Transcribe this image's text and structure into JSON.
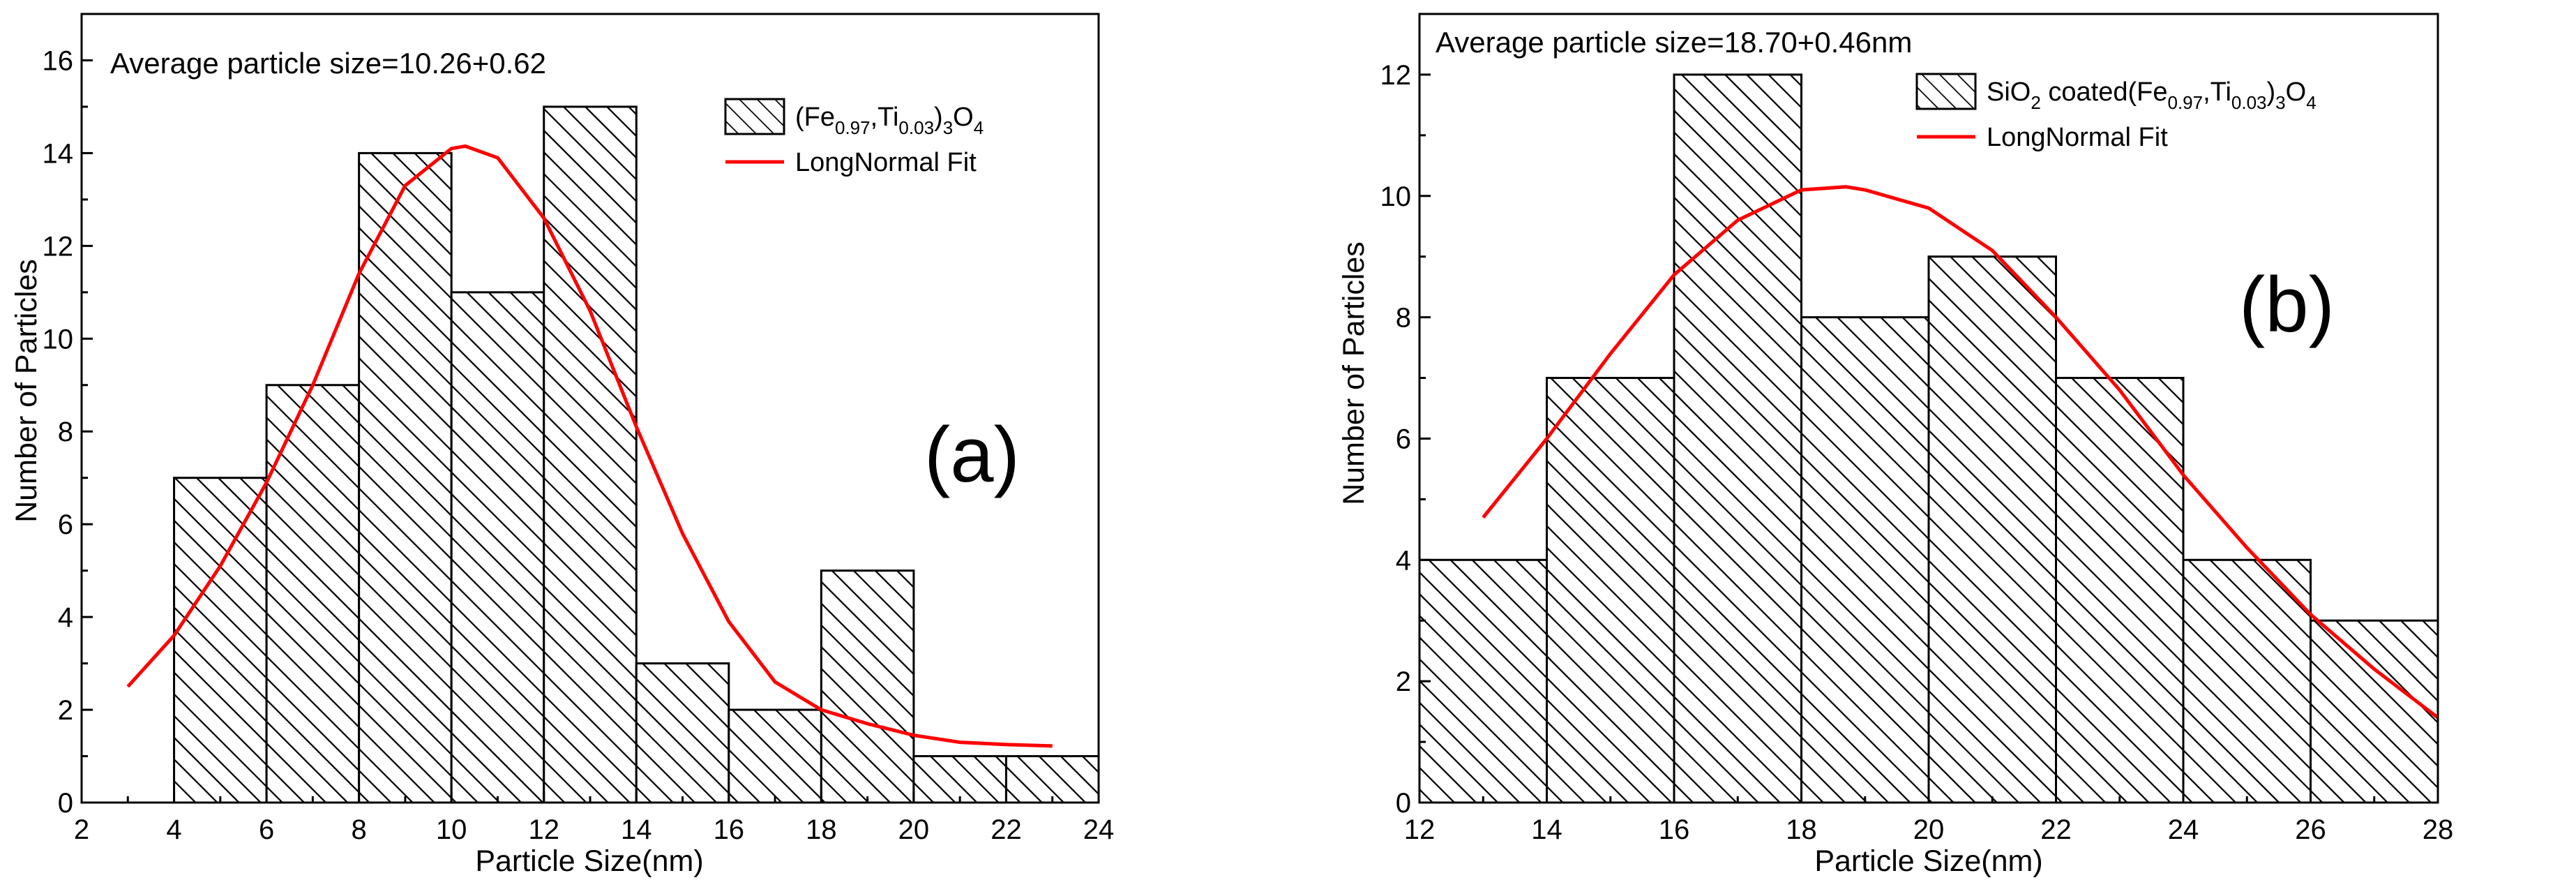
{
  "chart_data": [
    {
      "type": "bar",
      "panel_label": "(a)",
      "annotation": "Average particle size=10.26+0.62",
      "xlabel": "Particle Size(nm)",
      "ylabel": "Number of Particles",
      "xlim": [
        2,
        24
      ],
      "ylim": [
        0,
        17
      ],
      "xticks": [
        2,
        4,
        6,
        8,
        10,
        12,
        14,
        16,
        18,
        20,
        22,
        24
      ],
      "yticks": [
        0,
        2,
        4,
        6,
        8,
        10,
        12,
        14,
        16
      ],
      "bins": [
        [
          4,
          6
        ],
        [
          6,
          8
        ],
        [
          8,
          10
        ],
        [
          10,
          12
        ],
        [
          12,
          14
        ],
        [
          14,
          16
        ],
        [
          16,
          18
        ],
        [
          18,
          20
        ],
        [
          20,
          22
        ],
        [
          22,
          24
        ]
      ],
      "values": [
        7,
        9,
        14,
        11,
        15,
        3,
        2,
        5,
        1,
        1
      ],
      "fit": {
        "name": "LongNormal Fit",
        "x": [
          3,
          4,
          5,
          6,
          7,
          8,
          9,
          10,
          10.3,
          11,
          12,
          13,
          14,
          15,
          16,
          17,
          18,
          19,
          20,
          21,
          22,
          23
        ],
        "y": [
          2.5,
          3.6,
          5.1,
          6.9,
          9.0,
          11.4,
          13.3,
          14.1,
          14.15,
          13.9,
          12.6,
          10.6,
          8.1,
          5.8,
          3.9,
          2.6,
          2.0,
          1.7,
          1.45,
          1.3,
          1.25,
          1.22
        ]
      },
      "legend": {
        "series_label": {
          "prefix": "(Fe",
          "sub1": "0.97",
          "mid": ",Ti",
          "sub2": "0.03",
          "mid2": ")",
          "sub3": "3",
          "mid3": "O",
          "sub4": "4"
        },
        "fit_label": "LongNormal Fit"
      }
    },
    {
      "type": "bar",
      "panel_label": "(b)",
      "annotation": "Average particle size=18.70+0.46nm",
      "xlabel": "Particle Size(nm)",
      "ylabel": "Number of Particles",
      "xlim": [
        12,
        28
      ],
      "ylim": [
        0,
        13
      ],
      "xticks": [
        12,
        14,
        16,
        18,
        20,
        22,
        24,
        26,
        28
      ],
      "yticks": [
        0,
        2,
        4,
        6,
        8,
        10,
        12
      ],
      "bins": [
        [
          12,
          14
        ],
        [
          14,
          16
        ],
        [
          16,
          18
        ],
        [
          18,
          20
        ],
        [
          20,
          22
        ],
        [
          22,
          24
        ],
        [
          24,
          26
        ],
        [
          26,
          28
        ]
      ],
      "values": [
        4,
        7,
        12,
        8,
        9,
        7,
        4,
        3
      ],
      "fit": {
        "name": "LongNormal Fit",
        "x": [
          13,
          14,
          15,
          16,
          17,
          18,
          18.7,
          19,
          20,
          21,
          22,
          23,
          24,
          25,
          26,
          27,
          28
        ],
        "y": [
          4.7,
          6.0,
          7.4,
          8.7,
          9.6,
          10.1,
          10.15,
          10.1,
          9.8,
          9.1,
          8.0,
          6.8,
          5.4,
          4.2,
          3.1,
          2.2,
          1.4
        ]
      },
      "legend": {
        "series_label": {
          "prefix": "SiO",
          "sub1": "2",
          "mid": " coated(Fe",
          "sub2": "0.97",
          "mid2": ",Ti",
          "sub3": "0.03",
          "mid3": ")",
          "sub4": "3",
          "mid4": "O",
          "sub5": "4"
        },
        "fit_label": "LongNormal Fit"
      }
    }
  ],
  "colors": {
    "fit_line": "#ff0000",
    "bar_stroke": "#000000",
    "hatch": "#000000",
    "background": "#ffffff"
  }
}
